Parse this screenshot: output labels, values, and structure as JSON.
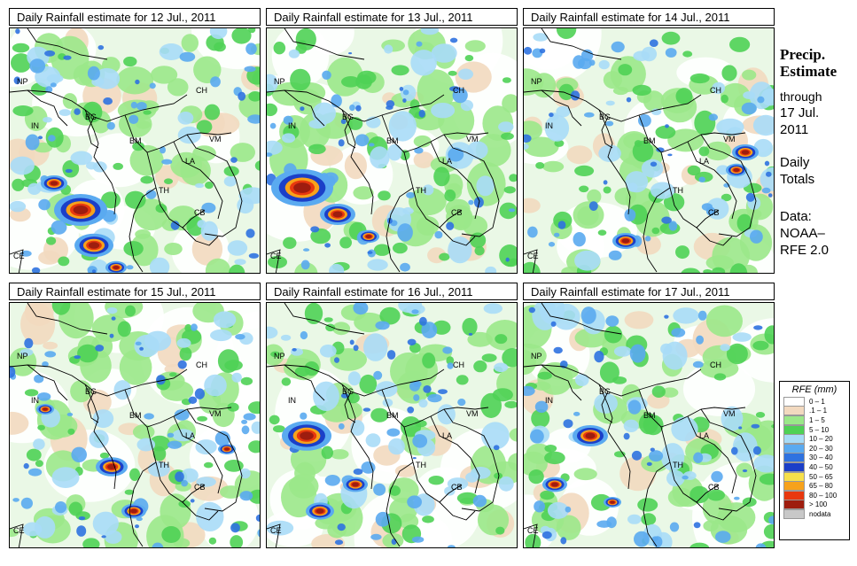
{
  "panels": [
    {
      "title": "Daily Rainfall estimate for  12 Jul., 2011"
    },
    {
      "title": "Daily Rainfall estimate for  13 Jul., 2011"
    },
    {
      "title": "Daily Rainfall estimate for  14 Jul., 2011"
    },
    {
      "title": "Daily Rainfall estimate for  15 Jul., 2011"
    },
    {
      "title": "Daily Rainfall estimate for  16 Jul., 2011"
    },
    {
      "title": "Daily Rainfall estimate for  17 Jul., 2011"
    }
  ],
  "country_labels": {
    "np": "NP",
    "ch": "CH",
    "in": "IN",
    "bg": "BG",
    "bm": "BM",
    "vm": "VM",
    "la": "LA",
    "th": "TH",
    "cb": "CB",
    "ce": "CE"
  },
  "sidebar": {
    "title_line1": "Precip.",
    "title_line2": "Estimate",
    "through": "through",
    "date_line1": "17 Jul.",
    "date_line2": "2011",
    "totals_line1": "Daily",
    "totals_line2": "Totals",
    "data_line1": "Data:",
    "data_line2": "NOAA–",
    "data_line3": "RFE 2.0"
  },
  "legend": {
    "title": "RFE (mm)",
    "items": [
      {
        "label": "0 – 1",
        "color": "#ffffff"
      },
      {
        "label": ".1 – 1",
        "color": "#f2d9bf"
      },
      {
        "label": "1 – 5",
        "color": "#9be889"
      },
      {
        "label": "5 – 10",
        "color": "#4fd155"
      },
      {
        "label": "10 – 20",
        "color": "#a8dcf7"
      },
      {
        "label": "20 – 30",
        "color": "#5aaaf0"
      },
      {
        "label": "30 – 40",
        "color": "#2f72e0"
      },
      {
        "label": "40 – 50",
        "color": "#1b3fc8"
      },
      {
        "label": "50 – 65",
        "color": "#f7e04a"
      },
      {
        "label": "65 – 80",
        "color": "#f7a21b"
      },
      {
        "label": "80 – 100",
        "color": "#e8380f"
      },
      {
        "label": "> 100",
        "color": "#9e1d0f"
      },
      {
        "label": "nodata",
        "color": "#c8c8c8"
      }
    ]
  }
}
